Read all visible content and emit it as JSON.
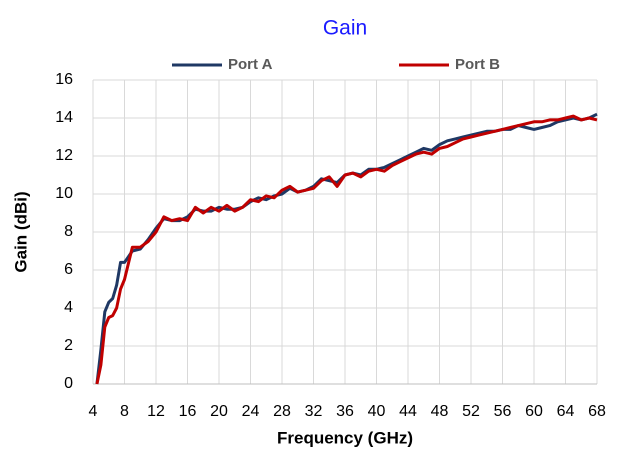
{
  "chart_data": {
    "type": "line",
    "title": "Gain",
    "xlabel": "Frequency  (GHz)",
    "ylabel": "Gain  (dBi)",
    "x": [
      4.5,
      5,
      5.5,
      6,
      6.5,
      7,
      7.5,
      8,
      9,
      10,
      11,
      12,
      13,
      14,
      15,
      16,
      17,
      18,
      19,
      20,
      21,
      22,
      23,
      24,
      25,
      26,
      27,
      28,
      29,
      30,
      31,
      32,
      33,
      34,
      35,
      36,
      37,
      38,
      39,
      40,
      41,
      42,
      43,
      44,
      45,
      46,
      47,
      48,
      49,
      50,
      51,
      52,
      53,
      54,
      55,
      56,
      57,
      58,
      59,
      60,
      61,
      62,
      63,
      64,
      65,
      66,
      67,
      68
    ],
    "series": [
      {
        "name": "Port A",
        "color": "#1f3864",
        "values": [
          0,
          1.8,
          3.8,
          4.3,
          4.5,
          5.2,
          6.4,
          6.4,
          7.0,
          7.1,
          7.6,
          8.2,
          8.7,
          8.6,
          8.6,
          8.8,
          9.2,
          9.1,
          9.1,
          9.3,
          9.2,
          9.2,
          9.3,
          9.6,
          9.8,
          9.7,
          9.9,
          10.0,
          10.3,
          10.1,
          10.2,
          10.4,
          10.8,
          10.7,
          10.6,
          11.0,
          11.1,
          11.0,
          11.3,
          11.3,
          11.4,
          11.6,
          11.8,
          12.0,
          12.2,
          12.4,
          12.3,
          12.6,
          12.8,
          12.9,
          13.0,
          13.1,
          13.2,
          13.3,
          13.3,
          13.4,
          13.4,
          13.6,
          13.5,
          13.4,
          13.5,
          13.6,
          13.8,
          13.9,
          14.0,
          13.9,
          14.0,
          14.2
        ]
      },
      {
        "name": "Port B",
        "color": "#c00000",
        "values": [
          0,
          1.0,
          3.0,
          3.5,
          3.6,
          4.0,
          5.0,
          5.5,
          7.2,
          7.2,
          7.5,
          8.0,
          8.8,
          8.6,
          8.7,
          8.6,
          9.3,
          9.0,
          9.3,
          9.1,
          9.4,
          9.1,
          9.3,
          9.7,
          9.6,
          9.9,
          9.8,
          10.2,
          10.4,
          10.1,
          10.2,
          10.3,
          10.7,
          10.9,
          10.4,
          11.0,
          11.1,
          10.9,
          11.2,
          11.3,
          11.2,
          11.5,
          11.7,
          11.9,
          12.1,
          12.2,
          12.1,
          12.4,
          12.5,
          12.7,
          12.9,
          13.0,
          13.1,
          13.2,
          13.3,
          13.4,
          13.5,
          13.6,
          13.7,
          13.8,
          13.8,
          13.9,
          13.9,
          14.0,
          14.1,
          13.9,
          14.0,
          13.9
        ]
      }
    ],
    "xlim": [
      4,
      68
    ],
    "xticks": [
      4,
      8,
      12,
      16,
      20,
      24,
      28,
      32,
      36,
      40,
      44,
      48,
      52,
      56,
      60,
      64,
      68
    ],
    "ylim": [
      0,
      16
    ],
    "yticks": [
      0,
      2,
      4,
      6,
      8,
      10,
      12,
      14,
      16
    ],
    "grid": true,
    "legend": "top"
  }
}
